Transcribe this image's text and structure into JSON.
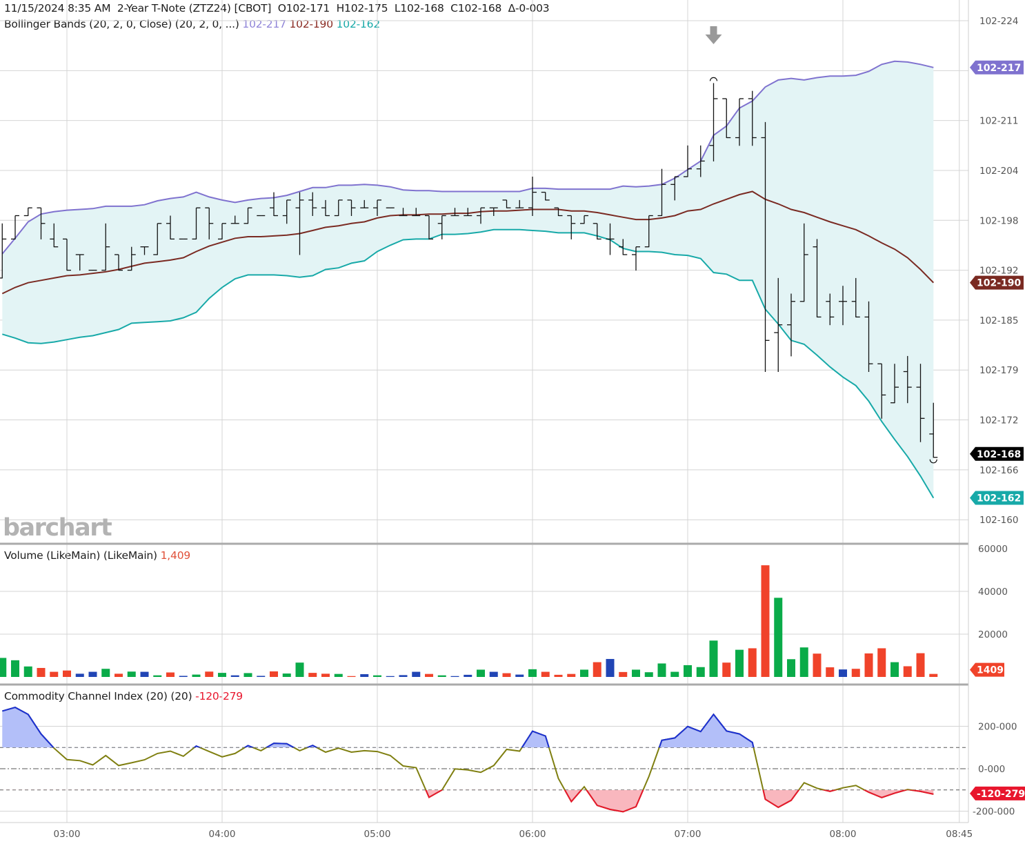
{
  "header": {
    "datetime": "11/15/2024 8:35 AM",
    "instrument": "2-Year T-Note (ZTZ24) [CBOT]",
    "open": "O102-171",
    "high": "H102-175",
    "low": "L102-168",
    "close": "C102-168",
    "change": "Δ-0-003"
  },
  "bollinger": {
    "label": "Bollinger Bands (20, 2, 0, Close)  (20, 2, 0, ...)",
    "upper": "102-217",
    "middle": "102-190",
    "lower": "102-162"
  },
  "volume_panel": {
    "label": "Volume (LikeMain)  (LikeMain)",
    "value": "1,409",
    "badge": "1409"
  },
  "cci_panel": {
    "label": "Commodity Channel Index (20)  (20)",
    "value": "-120-279",
    "badge": "-120-279"
  },
  "last_price_badge": "102-168",
  "logo": "barchart",
  "colors": {
    "bb_upper": "#7f72cf",
    "bb_middle": "#7a2a22",
    "bb_lower": "#17a9a8",
    "bb_fill": "#e3f4f5",
    "vol_up": "#0aab49",
    "vol_down": "#f0432a",
    "vol_unch": "#2145b5",
    "cci_line": "#7f7f10",
    "cci_over": "#1a2fd6",
    "cci_under": "#e8162d",
    "cci_over_fill": "#b3bff9",
    "cci_under_fill": "#f9b7be",
    "price_bar": "#111111"
  },
  "chart_data": [
    {
      "type": "ohlc",
      "price_handle": 102,
      "price_unit": "32nds",
      "first_bar_time": "02:35",
      "bar_interval_minutes": 5,
      "y_ticks": [
        {
          "label": "102-224",
          "value": 22.4
        },
        {
          "label": "",
          "value": 21.76
        },
        {
          "label": "102-211",
          "value": 21.12
        },
        {
          "label": "102-204",
          "value": 20.48
        },
        {
          "label": "102-198",
          "value": 19.84
        },
        {
          "label": "102-192",
          "value": 19.2
        },
        {
          "label": "102-185",
          "value": 18.56
        },
        {
          "label": "102-179",
          "value": 17.92
        },
        {
          "label": "102-172",
          "value": 17.28
        },
        {
          "label": "102-166",
          "value": 16.64
        },
        {
          "label": "102-160",
          "value": 16.0
        }
      ],
      "ylim": [
        15.6,
        22.65
      ],
      "x_ticks": [
        "03:00",
        "04:00",
        "05:00",
        "06:00",
        "07:00",
        "08:00",
        "08:45"
      ],
      "ohlc": [
        [
          19.1,
          19.8,
          19.1,
          19.6
        ],
        [
          19.6,
          19.9,
          19.6,
          19.9
        ],
        [
          19.9,
          20.0,
          19.9,
          20.0
        ],
        [
          20.0,
          20.0,
          19.6,
          19.8
        ],
        [
          19.6,
          19.8,
          19.5,
          19.5
        ],
        [
          19.6,
          19.6,
          19.2,
          19.2
        ],
        [
          19.4,
          19.4,
          19.2,
          19.4
        ],
        [
          19.2,
          19.2,
          19.2,
          19.2
        ],
        [
          19.2,
          19.8,
          19.2,
          19.5
        ],
        [
          19.4,
          19.4,
          19.2,
          19.2
        ],
        [
          19.2,
          19.5,
          19.2,
          19.4
        ],
        [
          19.5,
          19.5,
          19.4,
          19.5
        ],
        [
          19.4,
          19.8,
          19.4,
          19.8
        ],
        [
          19.8,
          19.9,
          19.6,
          19.6
        ],
        [
          19.6,
          19.6,
          19.6,
          19.6
        ],
        [
          19.6,
          20.0,
          19.6,
          20.0
        ],
        [
          20.0,
          20.0,
          19.6,
          19.8
        ],
        [
          19.6,
          19.8,
          19.6,
          19.8
        ],
        [
          19.8,
          19.9,
          19.8,
          19.8
        ],
        [
          19.8,
          20.0,
          19.8,
          20.0
        ],
        [
          19.9,
          19.9,
          19.9,
          19.9
        ],
        [
          20.0,
          20.2,
          19.9,
          19.9
        ],
        [
          19.9,
          20.1,
          19.8,
          20.1
        ],
        [
          20.0,
          20.2,
          19.4,
          20.1
        ],
        [
          20.1,
          20.2,
          19.9,
          20.0
        ],
        [
          20.0,
          20.1,
          19.9,
          19.9
        ],
        [
          19.9,
          20.1,
          19.9,
          20.1
        ],
        [
          20.1,
          20.1,
          19.9,
          20.0
        ],
        [
          20.0,
          20.1,
          20.0,
          20.0
        ],
        [
          20.0,
          20.1,
          19.9,
          20.1
        ],
        [
          20.0,
          20.0,
          20.0,
          20.0
        ],
        [
          19.9,
          20.0,
          19.9,
          19.9
        ],
        [
          19.9,
          20.0,
          19.9,
          19.9
        ],
        [
          19.9,
          19.9,
          19.6,
          19.6
        ],
        [
          19.8,
          19.9,
          19.6,
          19.9
        ],
        [
          19.9,
          20.0,
          19.9,
          19.9
        ],
        [
          19.9,
          20.0,
          19.9,
          19.9
        ],
        [
          19.9,
          20.0,
          19.8,
          20.0
        ],
        [
          20.0,
          20.0,
          19.9,
          20.0
        ],
        [
          20.1,
          20.1,
          20.0,
          20.0
        ],
        [
          20.0,
          20.1,
          20.0,
          20.0
        ],
        [
          20.0,
          20.4,
          19.9,
          20.2
        ],
        [
          20.2,
          20.2,
          20.1,
          20.1
        ],
        [
          20.0,
          20.0,
          19.9,
          19.9
        ],
        [
          19.9,
          19.9,
          19.6,
          19.8
        ],
        [
          19.8,
          19.9,
          19.8,
          19.9
        ],
        [
          19.8,
          19.8,
          19.6,
          19.6
        ],
        [
          19.6,
          19.8,
          19.4,
          19.6
        ],
        [
          19.5,
          19.6,
          19.4,
          19.4
        ],
        [
          19.4,
          19.5,
          19.2,
          19.5
        ],
        [
          19.5,
          19.9,
          19.5,
          19.9
        ],
        [
          19.9,
          20.5,
          19.9,
          20.3
        ],
        [
          20.3,
          20.4,
          20.1,
          20.4
        ],
        [
          20.4,
          20.8,
          20.4,
          20.5
        ],
        [
          20.5,
          20.8,
          20.4,
          20.6
        ],
        [
          20.8,
          21.6,
          20.6,
          21.4
        ],
        [
          21.4,
          21.4,
          20.9,
          20.9
        ],
        [
          20.9,
          21.4,
          20.8,
          21.4
        ],
        [
          21.4,
          21.5,
          20.8,
          20.9
        ],
        [
          20.9,
          21.1,
          17.9,
          18.3
        ],
        [
          18.4,
          19.1,
          17.9,
          18.5
        ],
        [
          18.5,
          18.9,
          18.1,
          18.8
        ],
        [
          18.8,
          19.8,
          18.8,
          19.4
        ],
        [
          19.5,
          19.6,
          18.6,
          18.6
        ],
        [
          18.8,
          18.9,
          18.5,
          18.6
        ],
        [
          18.8,
          19.0,
          18.5,
          18.8
        ],
        [
          18.8,
          19.1,
          18.6,
          18.6
        ],
        [
          18.6,
          18.8,
          17.9,
          18.0
        ],
        [
          18.0,
          18.0,
          17.3,
          17.6
        ],
        [
          17.5,
          18.0,
          17.5,
          17.7
        ],
        [
          17.9,
          18.1,
          17.5,
          17.7
        ],
        [
          17.7,
          18.0,
          17.0,
          17.3
        ],
        [
          17.1,
          17.5,
          16.8,
          16.8
        ]
      ],
      "series": [
        {
          "name": "102-217",
          "role": "upper",
          "values": [
            19.41,
            19.61,
            19.82,
            19.92,
            19.95,
            19.97,
            19.98,
            19.99,
            20.02,
            20.02,
            20.02,
            20.04,
            20.09,
            20.12,
            20.14,
            20.2,
            20.14,
            20.1,
            20.07,
            20.1,
            20.12,
            20.13,
            20.16,
            20.21,
            20.26,
            20.26,
            20.29,
            20.29,
            20.3,
            20.29,
            20.27,
            20.23,
            20.22,
            20.22,
            20.21,
            20.21,
            20.21,
            20.21,
            20.21,
            20.21,
            20.21,
            20.25,
            20.25,
            20.24,
            20.24,
            20.24,
            20.24,
            20.24,
            20.28,
            20.27,
            20.28,
            20.3,
            20.38,
            20.49,
            20.6,
            20.93,
            21.05,
            21.28,
            21.37,
            21.55,
            21.64,
            21.66,
            21.64,
            21.67,
            21.69,
            21.69,
            21.7,
            21.75,
            21.84,
            21.88,
            21.87,
            21.84,
            21.8
          ]
        },
        {
          "name": "102-190",
          "role": "middle",
          "values": [
            18.9,
            18.98,
            19.04,
            19.07,
            19.1,
            19.13,
            19.14,
            19.16,
            19.18,
            19.21,
            19.25,
            19.29,
            19.31,
            19.33,
            19.36,
            19.44,
            19.51,
            19.56,
            19.61,
            19.63,
            19.63,
            19.64,
            19.65,
            19.67,
            19.71,
            19.75,
            19.77,
            19.8,
            19.82,
            19.87,
            19.9,
            19.91,
            19.91,
            19.92,
            19.92,
            19.93,
            19.93,
            19.95,
            19.96,
            19.96,
            19.97,
            19.98,
            19.98,
            19.98,
            19.96,
            19.96,
            19.94,
            19.91,
            19.88,
            19.85,
            19.85,
            19.87,
            19.9,
            19.96,
            19.98,
            20.05,
            20.11,
            20.17,
            20.21,
            20.11,
            20.05,
            19.98,
            19.94,
            19.88,
            19.82,
            19.77,
            19.72,
            19.64,
            19.55,
            19.47,
            19.36,
            19.21,
            19.04
          ]
        },
        {
          "name": "102-162",
          "role": "lower",
          "values": [
            18.38,
            18.33,
            18.27,
            18.26,
            18.28,
            18.31,
            18.34,
            18.36,
            18.4,
            18.44,
            18.52,
            18.53,
            18.54,
            18.55,
            18.59,
            18.66,
            18.84,
            18.98,
            19.09,
            19.14,
            19.14,
            19.14,
            19.13,
            19.11,
            19.13,
            19.21,
            19.23,
            19.29,
            19.32,
            19.44,
            19.52,
            19.59,
            19.6,
            19.6,
            19.66,
            19.66,
            19.67,
            19.69,
            19.72,
            19.72,
            19.72,
            19.71,
            19.7,
            19.68,
            19.68,
            19.68,
            19.64,
            19.59,
            19.48,
            19.44,
            19.44,
            19.43,
            19.4,
            19.39,
            19.35,
            19.17,
            19.15,
            19.07,
            19.07,
            18.7,
            18.51,
            18.3,
            18.25,
            18.11,
            17.96,
            17.83,
            17.72,
            17.52,
            17.26,
            17.03,
            16.81,
            16.56,
            16.28
          ]
        }
      ],
      "high_marker_bar": 55,
      "low_marker_bar": 72,
      "arrow_marker_bar": 55
    },
    {
      "type": "bar",
      "y_ticks": [
        {
          "label": "60000",
          "value": 60000
        },
        {
          "label": "40000",
          "value": 40000
        },
        {
          "label": "20000",
          "value": 20000
        }
      ],
      "ylim": [
        0,
        60000
      ],
      "values": [
        8900,
        7800,
        4900,
        4200,
        2400,
        3000,
        1500,
        2400,
        3800,
        1500,
        2500,
        2400,
        750,
        2100,
        500,
        1100,
        2500,
        1900,
        750,
        1800,
        500,
        2600,
        1600,
        6700,
        1900,
        1500,
        1400,
        400,
        1300,
        750,
        400,
        850,
        2400,
        1400,
        750,
        400,
        1000,
        3400,
        2400,
        1750,
        1100,
        3600,
        2400,
        1000,
        1400,
        3400,
        6900,
        8400,
        2300,
        3400,
        2200,
        6300,
        2400,
        5500,
        4600,
        17000,
        6700,
        12700,
        13400,
        52200,
        37000,
        8300,
        13800,
        10900,
        4500,
        3500,
        3800,
        11000,
        13400,
        6900,
        5000,
        11100,
        1409
      ],
      "direction": [
        "up",
        "up",
        "up",
        "down",
        "down",
        "down",
        "unch",
        "unch",
        "up",
        "down",
        "up",
        "unch",
        "up",
        "down",
        "unch",
        "up",
        "down",
        "up",
        "unch",
        "up",
        "unch",
        "down",
        "up",
        "up",
        "down",
        "down",
        "up",
        "down",
        "unch",
        "up",
        "unch",
        "unch",
        "unch",
        "down",
        "up",
        "unch",
        "unch",
        "up",
        "unch",
        "down",
        "unch",
        "up",
        "down",
        "down",
        "down",
        "up",
        "down",
        "unch",
        "down",
        "up",
        "up",
        "up",
        "up",
        "up",
        "up",
        "up",
        "down",
        "up",
        "down",
        "down",
        "up",
        "up",
        "up",
        "down",
        "down",
        "unch",
        "down",
        "down",
        "down",
        "up",
        "down",
        "down",
        "down"
      ]
    },
    {
      "type": "line",
      "y_ticks": [
        {
          "label": "200-000",
          "value": 200
        },
        {
          "label": "0-000",
          "value": 0
        },
        {
          "label": "-200-000",
          "value": -200
        }
      ],
      "levels": [
        100,
        0,
        -100
      ],
      "ylim": [
        -250,
        250
      ],
      "values": [
        272,
        289,
        256,
        164,
        97,
        43,
        38,
        18,
        62,
        15,
        28,
        42,
        72,
        83,
        59,
        107,
        81,
        56,
        72,
        109,
        85,
        120,
        118,
        85,
        110,
        78,
        97,
        78,
        85,
        81,
        62,
        13,
        5,
        -135,
        -100,
        -1,
        -6,
        -17,
        15,
        91,
        83,
        177,
        154,
        -46,
        -155,
        -85,
        -173,
        -192,
        -203,
        -179,
        -36,
        134,
        145,
        199,
        175,
        256,
        178,
        164,
        124,
        -144,
        -182,
        -149,
        -66,
        -92,
        -107,
        -90,
        -79,
        -111,
        -136,
        -115,
        -98,
        -107,
        -120
      ]
    }
  ]
}
